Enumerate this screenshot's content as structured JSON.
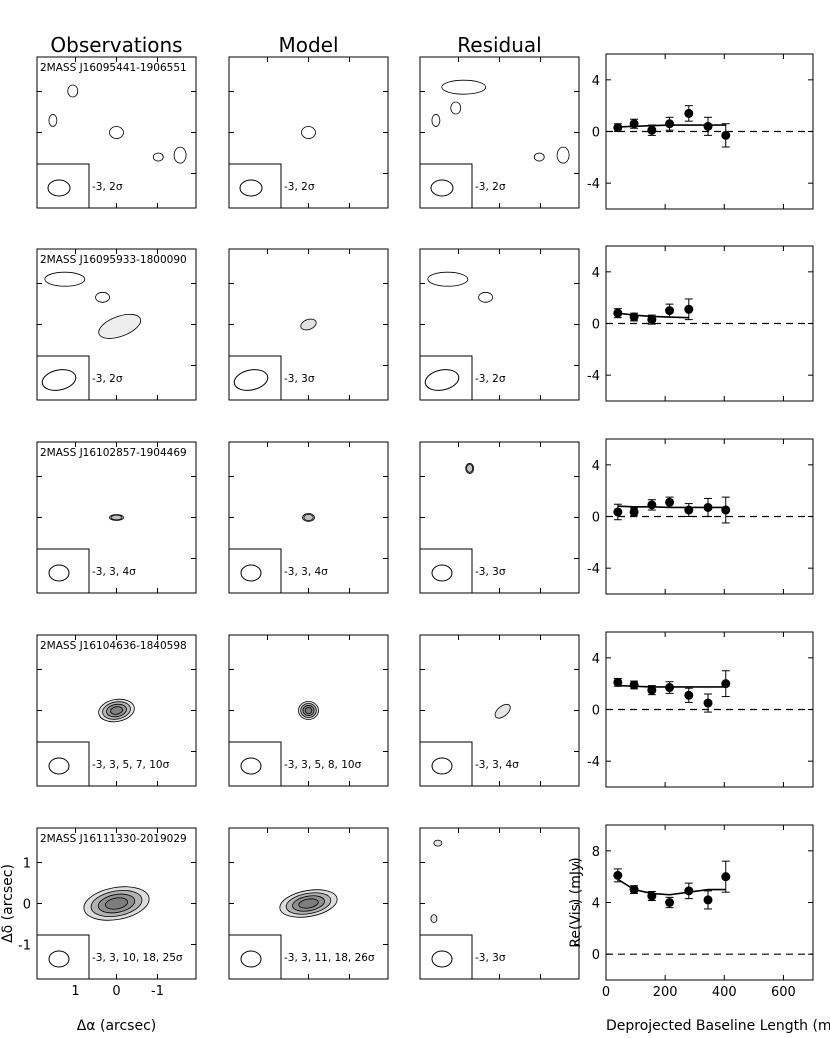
{
  "column_titles": [
    "Observations",
    "Model",
    "Residual"
  ],
  "image_axes": {
    "xlabel": "Δα (arcsec)",
    "ylabel": "Δδ (arcsec)",
    "x_ticks": [
      "1",
      "0",
      "-1"
    ],
    "y_ticks": [
      "1",
      "0",
      "-1"
    ]
  },
  "rows": [
    {
      "source": "2MASS J16095441-1906551",
      "contours": {
        "obs": "-3, 2σ",
        "model": "-3, 2σ",
        "resid": "-3, 2σ"
      },
      "obs_blobs": [
        [
          -110,
          -110,
          5,
          6,
          0
        ],
        [
          -160,
          -32,
          4,
          6,
          0
        ],
        [
          0,
          0,
          7,
          6,
          0.35
        ],
        [
          160,
          60,
          6,
          8,
          0.3
        ],
        [
          105,
          65,
          5,
          4,
          0
        ]
      ],
      "model_blobs": [
        [
          0,
          0,
          7,
          6,
          0.35
        ]
      ],
      "resid_blobs": [
        [
          -90,
          -120,
          22,
          7,
          0.1
        ],
        [
          -110,
          -65,
          5,
          6,
          0
        ],
        [
          -160,
          -32,
          4,
          6,
          0
        ],
        [
          160,
          60,
          6,
          8,
          0.3
        ],
        [
          100,
          65,
          5,
          4,
          0
        ]
      ],
      "beam": [
        11,
        8,
        0
      ]
    },
    {
      "source": "2MASS J16095933-1800090",
      "contours": {
        "obs": "-3, 2σ",
        "model": "-3, 3σ",
        "resid": "-3, 2σ"
      },
      "obs_blobs": [
        [
          -35,
          -72,
          7,
          5,
          0
        ],
        [
          8,
          5,
          22,
          10,
          -20,
          0.25
        ],
        [
          -130,
          -120,
          20,
          7,
          0.25
        ]
      ],
      "model_blobs": [
        [
          0,
          0,
          8,
          5,
          -20,
          0.45
        ]
      ],
      "resid_blobs": [
        [
          -35,
          -72,
          7,
          5,
          0
        ],
        [
          -130,
          -120,
          20,
          7,
          0.3
        ]
      ],
      "beam": [
        17,
        10,
        -12
      ]
    },
    {
      "source": "2MASS J16102857-1904469",
      "contours": {
        "obs": "-3, 3, 4σ",
        "model": "-3, 3, 4σ",
        "resid": "-3, 3σ"
      },
      "obs_blobs": [
        [
          0,
          0,
          7,
          3,
          0,
          0.4
        ]
      ],
      "model_blobs": [
        [
          0,
          0,
          6,
          4,
          0,
          0.4
        ]
      ],
      "resid_blobs": [
        [
          -75,
          -130,
          4,
          5,
          0,
          0.35
        ]
      ],
      "beam": [
        10,
        8,
        0
      ]
    },
    {
      "source": "2MASS J16104636-1840598",
      "contours": {
        "obs": "-3, 3, 5, 7, 10σ",
        "model": "-3, 3, 5, 8, 10σ",
        "resid": "-3, 3, 4σ"
      },
      "obs_blobs": [
        [
          0,
          0,
          18,
          11,
          -10,
          0.45
        ]
      ],
      "model_blobs": [
        [
          0,
          0,
          10,
          9,
          0,
          0.5
        ]
      ],
      "resid_blobs": [
        [
          8,
          2,
          9,
          5,
          -40,
          0.4
        ]
      ],
      "beam": [
        10,
        8,
        0
      ]
    },
    {
      "source": "2MASS J16111330-2019029",
      "contours": {
        "obs": "-3, 3, 10, 18, 25σ",
        "model": "-3, 3, 11, 18, 26σ",
        "resid": "-3, 3σ"
      },
      "obs_blobs": [
        [
          0,
          0,
          33,
          16,
          -10,
          0.5
        ]
      ],
      "model_blobs": [
        [
          0,
          0,
          29,
          13,
          -10,
          0.5
        ]
      ],
      "resid_blobs": [
        [
          -165,
          40,
          3,
          4,
          0,
          0.4
        ],
        [
          -155,
          -160,
          4,
          3,
          0,
          0.4
        ]
      ],
      "beam": [
        10,
        8,
        0
      ]
    }
  ],
  "chart_data": {
    "type": "scatter",
    "xlabel": "Deprojected Baseline Length (m)",
    "ylabel": "Re(Vis) (mJy)",
    "xlim": [
      0,
      700
    ],
    "x_ticks": [
      0,
      200,
      400,
      600
    ],
    "panels": [
      {
        "ylim": [
          -6,
          6
        ],
        "y_ticks": [
          -4,
          0,
          4
        ],
        "x": [
          40,
          95,
          155,
          215,
          280,
          345,
          405
        ],
        "y": [
          0.3,
          0.6,
          0.1,
          0.6,
          1.4,
          0.4,
          -0.3
        ],
        "err": [
          0.3,
          0.35,
          0.4,
          0.5,
          0.6,
          0.7,
          0.9
        ],
        "model_x": [
          40,
          95,
          155,
          215,
          280,
          345,
          405
        ],
        "model_y": [
          0.35,
          0.4,
          0.45,
          0.5,
          0.5,
          0.5,
          0.5
        ]
      },
      {
        "ylim": [
          -6,
          6
        ],
        "y_ticks": [
          -4,
          0,
          4
        ],
        "x": [
          40,
          95,
          155,
          215,
          280
        ],
        "y": [
          0.8,
          0.5,
          0.3,
          1.0,
          1.1
        ],
        "err": [
          0.35,
          0.3,
          0.35,
          0.5,
          0.8
        ],
        "model_x": [
          40,
          95,
          155,
          215,
          280
        ],
        "model_y": [
          0.8,
          0.65,
          0.55,
          0.5,
          0.45
        ]
      },
      {
        "ylim": [
          -6,
          6
        ],
        "y_ticks": [
          -4,
          0,
          4
        ],
        "x": [
          40,
          95,
          155,
          215,
          280,
          345,
          405
        ],
        "y": [
          0.35,
          0.35,
          0.9,
          1.1,
          0.5,
          0.7,
          0.5
        ],
        "err": [
          0.6,
          0.3,
          0.4,
          0.4,
          0.5,
          0.7,
          1.0
        ],
        "model_x": [
          40,
          95,
          155,
          215,
          280,
          345,
          405
        ],
        "model_y": [
          0.8,
          0.75,
          0.75,
          0.7,
          0.7,
          0.7,
          0.7
        ]
      },
      {
        "ylim": [
          -6,
          6
        ],
        "y_ticks": [
          -4,
          0,
          4
        ],
        "x": [
          40,
          95,
          155,
          215,
          280,
          345,
          405
        ],
        "y": [
          2.1,
          1.9,
          1.5,
          1.7,
          1.1,
          0.5,
          2.0
        ],
        "err": [
          0.3,
          0.3,
          0.35,
          0.45,
          0.55,
          0.7,
          1.0
        ],
        "model_x": [
          40,
          95,
          155,
          215,
          280,
          345,
          405
        ],
        "model_y": [
          1.85,
          1.8,
          1.75,
          1.75,
          1.75,
          1.75,
          1.75
        ]
      },
      {
        "ylim": [
          -2,
          10
        ],
        "y_ticks": [
          0,
          4,
          8
        ],
        "x": [
          40,
          95,
          155,
          215,
          280,
          345,
          405
        ],
        "y": [
          6.1,
          5.0,
          4.5,
          4.0,
          4.9,
          4.2,
          6.0
        ],
        "err": [
          0.5,
          0.3,
          0.35,
          0.4,
          0.6,
          0.7,
          1.2
        ],
        "model_x": [
          40,
          95,
          155,
          215,
          280,
          345,
          405
        ],
        "model_y": [
          5.8,
          5.0,
          4.7,
          4.6,
          4.8,
          5.0,
          5.0
        ]
      }
    ]
  }
}
